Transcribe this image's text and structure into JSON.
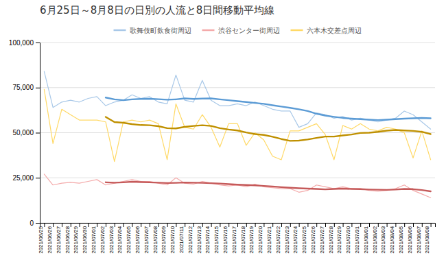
{
  "chart_data": {
    "type": "line",
    "title": "6月25日～8月8日の日別の人流と8日間移動平均線",
    "categories": [
      "2021/06/25",
      "2021/06/26",
      "2021/06/27",
      "2021/06/28",
      "2021/06/29",
      "2021/06/30",
      "2021/07/01",
      "2021/07/02",
      "2021/07/03",
      "2021/07/04",
      "2021/07/05",
      "2021/07/06",
      "2021/07/07",
      "2021/07/08",
      "2021/07/09",
      "2021/07/10",
      "2021/07/11",
      "2021/07/12",
      "2021/07/13",
      "2021/07/14",
      "2021/07/15",
      "2021/07/16",
      "2021/07/17",
      "2021/07/18",
      "2021/07/19",
      "2021/07/20",
      "2021/07/21",
      "2021/07/22",
      "2021/07/23",
      "2021/07/24",
      "2021/07/25",
      "2021/07/26",
      "2021/07/27",
      "2021/07/28",
      "2021/07/29",
      "2021/07/30",
      "2021/07/31",
      "2021/08/01",
      "2021/08/02",
      "2021/08/03",
      "2021/08/04",
      "2021/08/05",
      "2021/08/06",
      "2021/08/07",
      "2021/08/08"
    ],
    "series": [
      {
        "name": "歌舞伎町飲食街周辺",
        "color": "#A8C8E8",
        "values": [
          84000,
          64000,
          67000,
          68000,
          67000,
          69000,
          70000,
          65000,
          67000,
          68000,
          71000,
          69000,
          70000,
          67000,
          66000,
          82000,
          68000,
          67000,
          79000,
          68000,
          65000,
          65000,
          66000,
          65000,
          67000,
          65000,
          63000,
          62000,
          62000,
          53000,
          55000,
          61000,
          60000,
          58000,
          59000,
          57000,
          58000,
          57000,
          56000,
          57000,
          58000,
          62000,
          60000,
          56000,
          52000
        ]
      },
      {
        "name": "渋谷センター街周辺",
        "color": "#F4AAAA",
        "values": [
          27000,
          21000,
          22000,
          22500,
          22000,
          23000,
          24000,
          21000,
          22000,
          23000,
          24000,
          23000,
          23000,
          22000,
          21000,
          25000,
          22000,
          21500,
          23000,
          22000,
          21000,
          20500,
          21000,
          20000,
          21500,
          20000,
          19500,
          19000,
          19000,
          17000,
          18000,
          21000,
          20000,
          19000,
          20000,
          19000,
          19000,
          18000,
          17500,
          18000,
          19000,
          21000,
          18000,
          16000,
          14000
        ]
      },
      {
        "name": "六本木交差点周辺",
        "color": "#FFD966",
        "values": [
          74000,
          44000,
          63000,
          60000,
          57000,
          57000,
          57000,
          56000,
          34000,
          56000,
          57000,
          56000,
          57000,
          55000,
          35000,
          66000,
          53000,
          52000,
          60000,
          53000,
          42000,
          55000,
          55000,
          43000,
          50000,
          46000,
          37000,
          35000,
          51000,
          51000,
          53000,
          55000,
          49000,
          35000,
          54000,
          52000,
          55000,
          52000,
          51000,
          53000,
          52000,
          50000,
          36000,
          51000,
          35000
        ]
      },
      {
        "color": "#5B9BD5",
        "values": [
          null,
          null,
          null,
          null,
          null,
          null,
          null,
          69500,
          68500,
          68000,
          68500,
          68700,
          68800,
          68600,
          68300,
          68500,
          69000,
          68700,
          68900,
          69000,
          68500,
          68000,
          67500,
          67000,
          66500,
          66000,
          65200,
          64500,
          63800,
          63000,
          62000,
          60500,
          59500,
          58800,
          58200,
          57800,
          57500,
          57200,
          57000,
          57200,
          57500,
          57800,
          58000,
          58200,
          58000
        ]
      },
      {
        "color": "#C55A5A",
        "values": [
          null,
          null,
          null,
          null,
          null,
          null,
          null,
          22500,
          22300,
          22500,
          22800,
          22600,
          22500,
          22300,
          22100,
          22200,
          22400,
          22300,
          22200,
          22000,
          21800,
          21500,
          21200,
          21000,
          20800,
          20500,
          20200,
          19800,
          19500,
          19200,
          19000,
          18800,
          18600,
          18800,
          19000,
          18800,
          18700,
          18500,
          18400,
          18300,
          18500,
          18800,
          18700,
          18200,
          17500
        ]
      },
      {
        "color": "#BF9000",
        "values": [
          null,
          null,
          null,
          null,
          null,
          null,
          null,
          58750,
          55875,
          55500,
          54750,
          54250,
          54125,
          53625,
          52500,
          52375,
          53250,
          53750,
          54125,
          53750,
          52500,
          51750,
          51250,
          50125,
          49250,
          48750,
          47750,
          46500,
          45500,
          45625,
          46250,
          47125,
          47875,
          47875,
          48500,
          49000,
          49875,
          50000,
          50500,
          51125,
          51500,
          51250,
          51000,
          50500,
          49250
        ]
      }
    ],
    "ylim": [
      0,
      100000
    ],
    "yticks": [
      0,
      {
        "value": 25000,
        "label": "25,000"
      },
      {
        "value": 50000,
        "label": "50,000"
      },
      {
        "value": 75000,
        "label": "75,000"
      },
      {
        "value": 100000,
        "label": "100,000"
      }
    ],
    "grid": true,
    "legend": "top"
  }
}
